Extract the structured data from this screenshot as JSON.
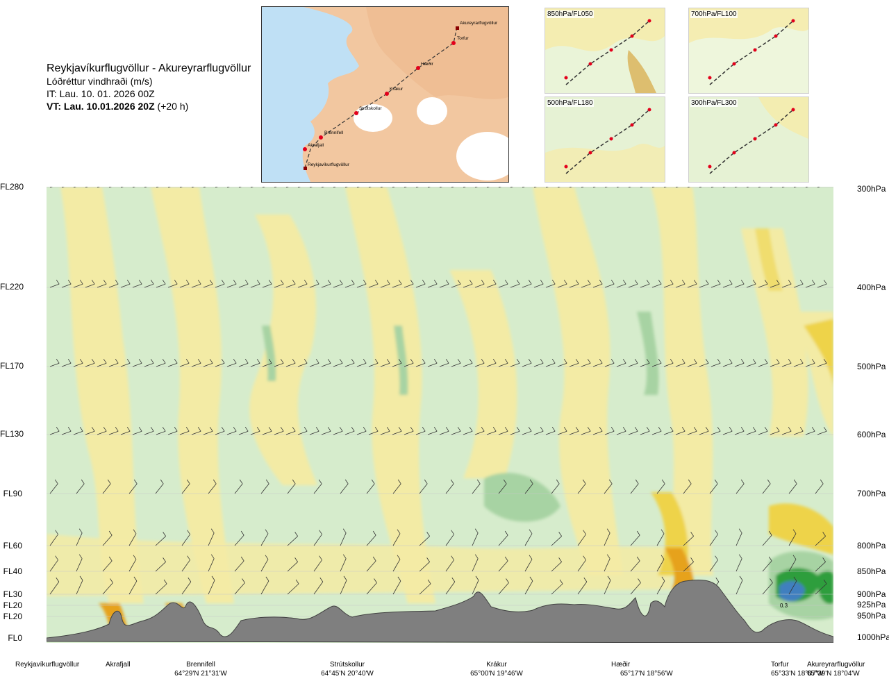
{
  "header": {
    "route": "Reykjavíkurflugvöllur - Akureyrarflugvöllur",
    "parameter": "Lóðréttur vindhraði (m/s)",
    "issue_time": "IT: Lau. 10. 01. 2026 00Z",
    "valid_time": "VT: Lau. 10.01.2026 20Z",
    "valid_offset": "(+20 h)"
  },
  "route_map": {
    "stations": [
      "Akureyrarflugvöllur",
      "Torfur",
      "Hæðir",
      "Krákur",
      "Strútskollur",
      "Brennifell",
      "Akrafjall",
      "Reykjavíkurflugvöllur"
    ]
  },
  "thumbnails": [
    {
      "label": "850hPa/FL050"
    },
    {
      "label": "700hPa/FL100"
    },
    {
      "label": "500hPa/FL180"
    },
    {
      "label": "300hPa/FL300"
    }
  ],
  "flight_levels": [
    "FL280",
    "FL220",
    "FL170",
    "FL130",
    "FL90",
    "FL60",
    "FL40",
    "FL30",
    "FL20",
    "FL20",
    "FL0"
  ],
  "pressure_levels": [
    "300hPa",
    "400hPa",
    "500hPa",
    "600hPa",
    "700hPa",
    "800hPa",
    "850hPa",
    "900hPa",
    "925hPa",
    "950hPa",
    "1000hPa"
  ],
  "cross_section": {
    "annotation": "0.3"
  },
  "locations": [
    {
      "name": "Reykjavíkurflugvöllur",
      "coord": ""
    },
    {
      "name": "Akrafjall",
      "coord": ""
    },
    {
      "name": "Brennifell",
      "coord": "64°29'N 21°31'W"
    },
    {
      "name": "Strútskollur",
      "coord": "64°45'N 20°40'W"
    },
    {
      "name": "Krákur",
      "coord": "65°00'N 19°46'W"
    },
    {
      "name": "Hæðir",
      "coord": "65°17'N 18°56'W"
    },
    {
      "name": "Torfur",
      "coord": "65°33'N 18°07'W"
    },
    {
      "name": "Akureyrarflugvöllur",
      "coord": "65°39'N 18°04'W"
    }
  ],
  "colors": {
    "terrain": "#7f7f7f",
    "sea": "#bfe0f5",
    "land": "#f2c7a0",
    "route_point": "#e3001b",
    "updraft_weak": "#f3eba5",
    "updraft_mid": "#eed34a",
    "updraft_strong": "#e6a21c",
    "downdraft_weak": "#d6eccc",
    "downdraft_mid": "#a7d3a3",
    "downdraft_strong": "#2e9e3c",
    "downdraft_max": "#3f7fbf"
  }
}
